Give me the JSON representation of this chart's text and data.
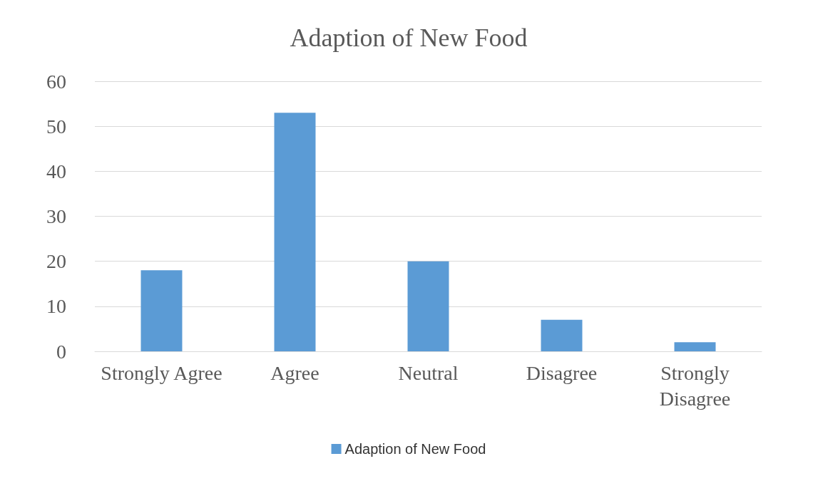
{
  "chart_data": {
    "type": "bar",
    "title": "Adaption of New Food",
    "categories": [
      "Strongly Agree",
      "Agree",
      "Neutral",
      "Disagree",
      "Strongly\nDisagree"
    ],
    "series": [
      {
        "name": "Adaption of New Food",
        "color": "#5b9bd5",
        "values": [
          18,
          53,
          20,
          7,
          2
        ]
      }
    ],
    "ylim": [
      0,
      60
    ],
    "yticks": [
      0,
      10,
      20,
      30,
      40,
      50,
      60
    ],
    "grid": "y",
    "legend": "bottom"
  }
}
